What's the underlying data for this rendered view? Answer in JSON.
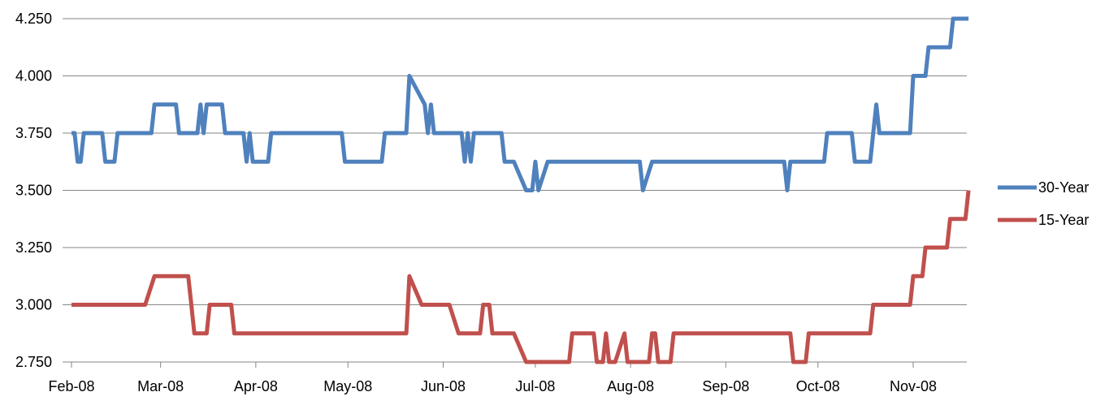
{
  "chart_data": {
    "type": "line",
    "xlabel": "",
    "ylabel": "",
    "ylim": [
      2.75,
      4.25
    ],
    "y_ticks": [
      "2.750",
      "3.000",
      "3.250",
      "3.500",
      "3.750",
      "4.000",
      "4.250"
    ],
    "x_ticks": [
      "Feb-08",
      "Mar-08",
      "Apr-08",
      "May-08",
      "Jun-08",
      "Jul-08",
      "Aug-08",
      "Sep-08",
      "Oct-08",
      "Nov-08"
    ],
    "grid": "horizontal",
    "legend_position": "right",
    "series": [
      {
        "name": "30-Year",
        "color": "#4F81BD",
        "points": [
          [
            "2008-02-01",
            3.75
          ],
          [
            "2008-02-02",
            3.75
          ],
          [
            "2008-02-03",
            3.625
          ],
          [
            "2008-02-04",
            3.625
          ],
          [
            "2008-02-05",
            3.75
          ],
          [
            "2008-02-11",
            3.75
          ],
          [
            "2008-02-12",
            3.625
          ],
          [
            "2008-02-15",
            3.625
          ],
          [
            "2008-02-16",
            3.75
          ],
          [
            "2008-02-27",
            3.75
          ],
          [
            "2008-02-28",
            3.875
          ],
          [
            "2008-03-06",
            3.875
          ],
          [
            "2008-03-07",
            3.75
          ],
          [
            "2008-03-13",
            3.75
          ],
          [
            "2008-03-14",
            3.875
          ],
          [
            "2008-03-15",
            3.75
          ],
          [
            "2008-03-16",
            3.875
          ],
          [
            "2008-03-21",
            3.875
          ],
          [
            "2008-03-22",
            3.75
          ],
          [
            "2008-03-28",
            3.75
          ],
          [
            "2008-03-29",
            3.625
          ],
          [
            "2008-03-30",
            3.75
          ],
          [
            "2008-03-31",
            3.625
          ],
          [
            "2008-04-05",
            3.625
          ],
          [
            "2008-04-06",
            3.75
          ],
          [
            "2008-04-29",
            3.75
          ],
          [
            "2008-04-30",
            3.625
          ],
          [
            "2008-05-12",
            3.625
          ],
          [
            "2008-05-13",
            3.75
          ],
          [
            "2008-05-20",
            3.75
          ],
          [
            "2008-05-21",
            4.0
          ],
          [
            "2008-05-26",
            3.875
          ],
          [
            "2008-05-27",
            3.75
          ],
          [
            "2008-05-28",
            3.875
          ],
          [
            "2008-05-29",
            3.75
          ],
          [
            "2008-06-07",
            3.75
          ],
          [
            "2008-06-08",
            3.625
          ],
          [
            "2008-06-09",
            3.75
          ],
          [
            "2008-06-10",
            3.625
          ],
          [
            "2008-06-11",
            3.75
          ],
          [
            "2008-06-20",
            3.75
          ],
          [
            "2008-06-21",
            3.625
          ],
          [
            "2008-06-24",
            3.625
          ],
          [
            "2008-06-28",
            3.5
          ],
          [
            "2008-06-30",
            3.5
          ],
          [
            "2008-07-01",
            3.625
          ],
          [
            "2008-07-02",
            3.5
          ],
          [
            "2008-07-05",
            3.625
          ],
          [
            "2008-08-04",
            3.625
          ],
          [
            "2008-08-05",
            3.5
          ],
          [
            "2008-08-08",
            3.625
          ],
          [
            "2008-09-20",
            3.625
          ],
          [
            "2008-09-21",
            3.5
          ],
          [
            "2008-09-22",
            3.625
          ],
          [
            "2008-10-03",
            3.625
          ],
          [
            "2008-10-04",
            3.75
          ],
          [
            "2008-10-12",
            3.75
          ],
          [
            "2008-10-13",
            3.625
          ],
          [
            "2008-10-18",
            3.625
          ],
          [
            "2008-10-19",
            3.75
          ],
          [
            "2008-10-20",
            3.875
          ],
          [
            "2008-10-21",
            3.75
          ],
          [
            "2008-10-31",
            3.75
          ],
          [
            "2008-11-01",
            4.0
          ],
          [
            "2008-11-05",
            4.0
          ],
          [
            "2008-11-06",
            4.125
          ],
          [
            "2008-11-13",
            4.125
          ],
          [
            "2008-11-14",
            4.25
          ],
          [
            "2008-11-19",
            4.25
          ]
        ]
      },
      {
        "name": "15-Year",
        "color": "#C0504D",
        "points": [
          [
            "2008-02-01",
            3.0
          ],
          [
            "2008-02-25",
            3.0
          ],
          [
            "2008-02-28",
            3.125
          ],
          [
            "2008-03-10",
            3.125
          ],
          [
            "2008-03-11",
            3.0
          ],
          [
            "2008-03-12",
            2.875
          ],
          [
            "2008-03-16",
            2.875
          ],
          [
            "2008-03-17",
            3.0
          ],
          [
            "2008-03-24",
            3.0
          ],
          [
            "2008-03-25",
            2.875
          ],
          [
            "2008-05-20",
            2.875
          ],
          [
            "2008-05-21",
            3.125
          ],
          [
            "2008-05-25",
            3.0
          ],
          [
            "2008-06-03",
            3.0
          ],
          [
            "2008-06-06",
            2.875
          ],
          [
            "2008-06-13",
            2.875
          ],
          [
            "2008-06-14",
            3.0
          ],
          [
            "2008-06-16",
            3.0
          ],
          [
            "2008-06-17",
            2.875
          ],
          [
            "2008-06-24",
            2.875
          ],
          [
            "2008-06-28",
            2.75
          ],
          [
            "2008-07-12",
            2.75
          ],
          [
            "2008-07-13",
            2.875
          ],
          [
            "2008-07-20",
            2.875
          ],
          [
            "2008-07-21",
            2.75
          ],
          [
            "2008-07-23",
            2.75
          ],
          [
            "2008-07-24",
            2.875
          ],
          [
            "2008-07-25",
            2.75
          ],
          [
            "2008-07-27",
            2.75
          ],
          [
            "2008-07-30",
            2.875
          ],
          [
            "2008-07-31",
            2.75
          ],
          [
            "2008-08-07",
            2.75
          ],
          [
            "2008-08-08",
            2.875
          ],
          [
            "2008-08-09",
            2.875
          ],
          [
            "2008-08-10",
            2.75
          ],
          [
            "2008-08-14",
            2.75
          ],
          [
            "2008-08-15",
            2.875
          ],
          [
            "2008-09-22",
            2.875
          ],
          [
            "2008-09-23",
            2.75
          ],
          [
            "2008-09-27",
            2.75
          ],
          [
            "2008-09-28",
            2.875
          ],
          [
            "2008-10-18",
            2.875
          ],
          [
            "2008-10-19",
            3.0
          ],
          [
            "2008-10-31",
            3.0
          ],
          [
            "2008-11-01",
            3.125
          ],
          [
            "2008-11-04",
            3.125
          ],
          [
            "2008-11-05",
            3.25
          ],
          [
            "2008-11-12",
            3.25
          ],
          [
            "2008-11-13",
            3.375
          ],
          [
            "2008-11-18",
            3.375
          ],
          [
            "2008-11-19",
            3.5
          ]
        ]
      }
    ]
  }
}
